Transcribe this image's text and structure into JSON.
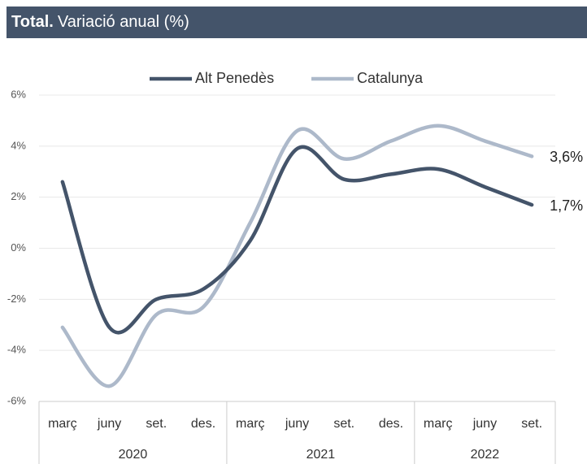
{
  "chart_data": {
    "type": "line",
    "title_lead": "Total.",
    "title": "Variació anual (%)",
    "categories": [
      "març",
      "juny",
      "set.",
      "des.",
      "març",
      "juny",
      "set.",
      "des.",
      "març",
      "juny",
      "set."
    ],
    "groups": [
      {
        "label": "2020",
        "count": 4
      },
      {
        "label": "2021",
        "count": 4
      },
      {
        "label": "2022",
        "count": 3
      }
    ],
    "series": [
      {
        "name": "Alt Penedès",
        "color": "#44546a",
        "values": [
          2.6,
          -3.1,
          -2.0,
          -1.6,
          0.3,
          3.9,
          2.7,
          2.9,
          3.1,
          2.4,
          1.7
        ],
        "value_labels": [
          null,
          null,
          null,
          null,
          null,
          null,
          null,
          null,
          null,
          null,
          "1,7%"
        ]
      },
      {
        "name": "Catalunya",
        "color": "#adb9ca",
        "values": [
          -3.1,
          -5.4,
          -2.6,
          -2.3,
          1.0,
          4.6,
          3.5,
          4.2,
          4.8,
          4.2,
          3.6
        ],
        "value_labels": [
          null,
          null,
          null,
          null,
          null,
          null,
          null,
          null,
          null,
          null,
          "3,6%"
        ]
      }
    ],
    "ylim": [
      -6,
      6
    ],
    "yticks": [
      {
        "value": -6,
        "label": "-6%"
      },
      {
        "value": -4,
        "label": "-4%"
      },
      {
        "value": -2,
        "label": "-2%"
      },
      {
        "value": 0,
        "label": "0%"
      },
      {
        "value": 2,
        "label": "2%"
      },
      {
        "value": 4,
        "label": "4%"
      },
      {
        "value": 6,
        "label": "6%"
      }
    ],
    "grid": true,
    "legend": "top",
    "smooth": true
  }
}
